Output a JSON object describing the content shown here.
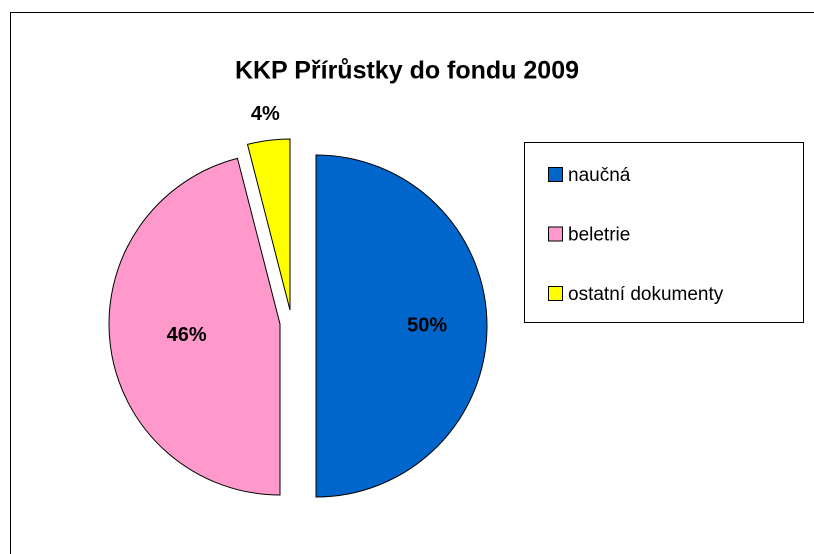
{
  "chart_data": {
    "type": "pie",
    "title": "KKP Přírůstky do fondu 2009",
    "categories": [
      "naučná",
      "beletrie",
      "ostatní dokumenty"
    ],
    "values": [
      50,
      46,
      4
    ],
    "value_labels": [
      "50%",
      "46%",
      "4%"
    ],
    "colors": [
      "#0066cc",
      "#ff99cc",
      "#ffff00"
    ],
    "legend": "right"
  }
}
